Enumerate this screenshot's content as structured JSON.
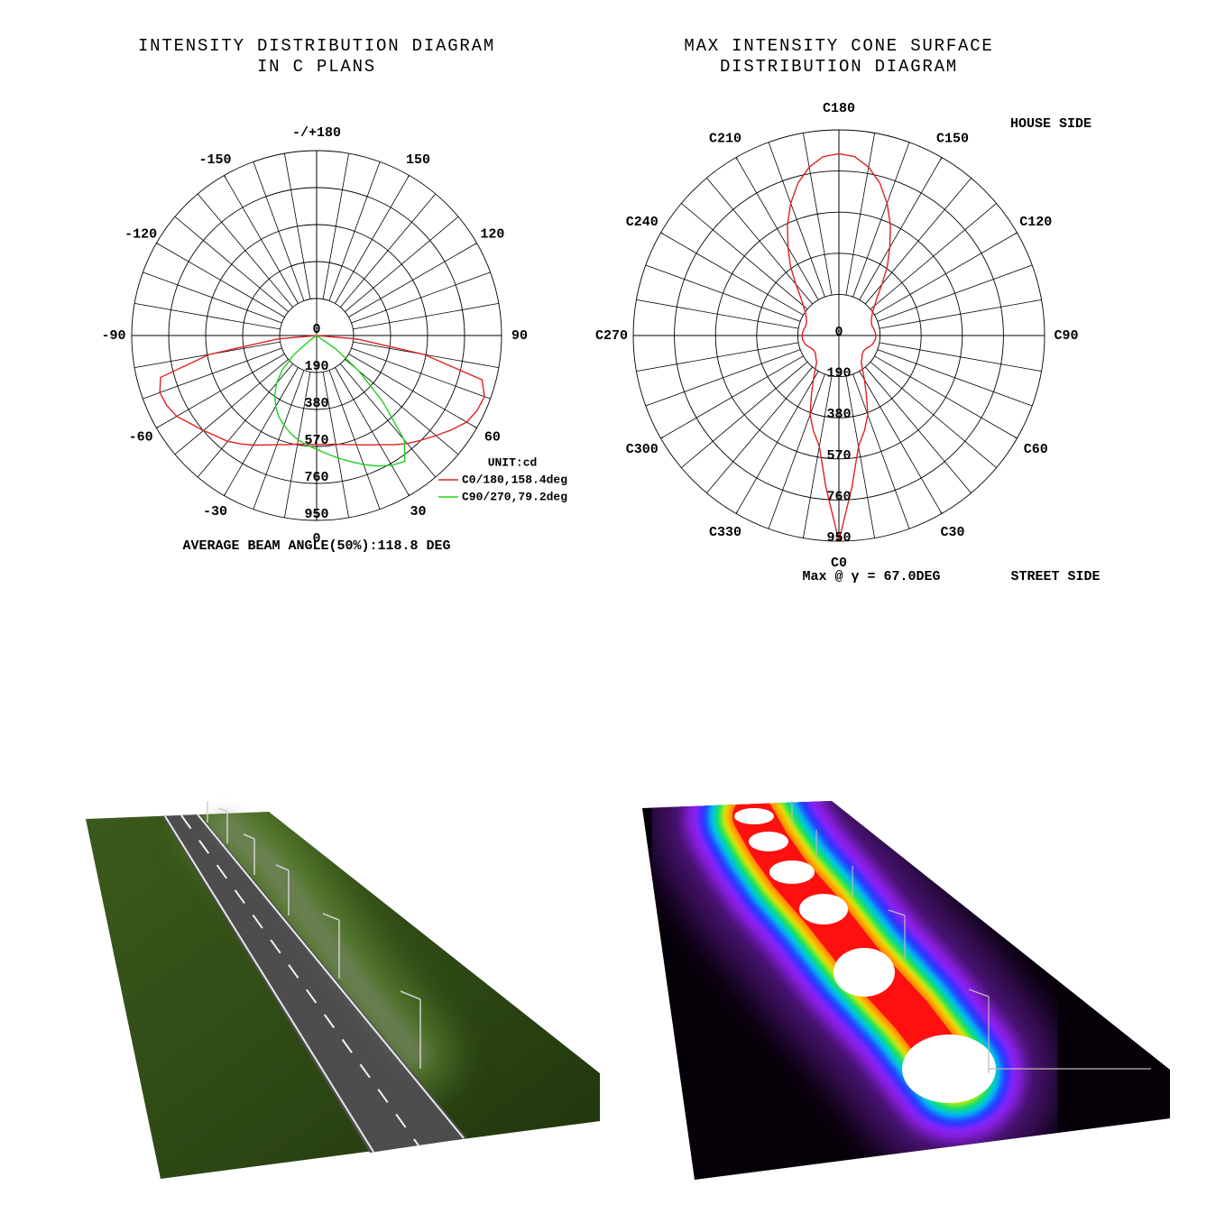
{
  "chart_data": [
    {
      "type": "polar",
      "title": "INTENSITY DISTRIBUTION DIAGRAM",
      "subtitle": "IN C PLANS",
      "x": [
        -90,
        -85,
        -80,
        -75,
        -70,
        -65,
        -60,
        -55,
        -50,
        -45,
        -40,
        -35,
        -30,
        -25,
        -20,
        -15,
        -10,
        -5,
        0,
        5,
        10,
        15,
        20,
        25,
        30,
        35,
        40,
        45,
        50,
        55,
        60,
        65,
        70,
        75,
        80,
        85,
        90
      ],
      "series": [
        {
          "name": "C0/180,158.4deg",
          "color": "#e02020",
          "values": [
            0,
            200,
            560,
            830,
            857,
            850,
            830,
            790,
            760,
            730,
            710,
            680,
            650,
            620,
            597,
            580,
            567,
            562,
            560,
            562,
            567,
            580,
            597,
            620,
            648,
            685,
            725,
            760,
            800,
            845,
            890,
            910,
            918,
            880,
            560,
            210,
            0
          ]
        },
        {
          "name": "C90/270,79.2deg",
          "color": "#20d020",
          "values": [
            0,
            0,
            0,
            0,
            0,
            0,
            0,
            40,
            150,
            250,
            320,
            375,
            420,
            460,
            490,
            520,
            545,
            565,
            585,
            610,
            640,
            670,
            705,
            740,
            770,
            790,
            700,
            480,
            280,
            120,
            0,
            0,
            0,
            0,
            0,
            0,
            0
          ]
        }
      ],
      "rlim": [
        0,
        950
      ],
      "rticks": [
        0,
        190,
        380,
        570,
        760,
        950
      ],
      "angle_ticks": [
        {
          "value": 180,
          "label": "-/+180"
        },
        150,
        120,
        90,
        60,
        30,
        0,
        -30,
        -60,
        -90,
        -120,
        -150
      ],
      "legend": "lower right",
      "unit_label": "UNIT:cd",
      "footer": "AVERAGE BEAM ANGLE(50%):118.8 DEG"
    },
    {
      "type": "polar",
      "title": "MAX INTENSITY CONE SURFACE",
      "subtitle": "DISTRIBUTION DIAGRAM",
      "x": [
        0,
        5,
        10,
        15,
        20,
        25,
        30,
        35,
        40,
        45,
        50,
        55,
        60,
        65,
        70,
        75,
        80,
        85,
        90,
        95,
        100,
        105,
        110,
        115,
        120,
        125,
        130,
        135,
        140,
        145,
        150,
        155,
        160,
        165,
        170,
        175,
        180,
        185,
        190,
        195,
        200,
        205,
        210,
        215,
        220,
        225,
        230,
        235,
        240,
        245,
        250,
        255,
        260,
        265,
        270,
        275,
        280,
        285,
        290,
        295,
        300,
        305,
        310,
        315,
        320,
        325,
        330,
        335,
        340,
        345,
        350,
        355
      ],
      "series": [
        {
          "color": "#e02020",
          "values": [
            950,
            700,
            520,
            455,
            390,
            300,
            236,
            190,
            160,
            150,
            140,
            135,
            135,
            140,
            150,
            160,
            165,
            170,
            170,
            168,
            165,
            160,
            160,
            165,
            175,
            190,
            215,
            250,
            310,
            390,
            470,
            563,
            650,
            730,
            790,
            830,
            840,
            830,
            790,
            730,
            650,
            563,
            470,
            390,
            310,
            250,
            215,
            190,
            175,
            165,
            160,
            160,
            165,
            168,
            170,
            170,
            165,
            160,
            150,
            140,
            135,
            135,
            140,
            150,
            160,
            190,
            236,
            300,
            390,
            455,
            520,
            700
          ]
        }
      ],
      "rlim": [
        0,
        950
      ],
      "rticks": [
        0,
        190,
        380,
        570,
        760,
        950
      ],
      "angle_ticks": [
        {
          "value": 180,
          "label": "C180"
        },
        {
          "value": 150,
          "label": "C150"
        },
        {
          "value": 120,
          "label": "C120"
        },
        {
          "value": 90,
          "label": "C90"
        },
        {
          "value": 60,
          "label": "C60"
        },
        {
          "value": 30,
          "label": "C30"
        },
        {
          "value": 0,
          "label": "C0"
        },
        {
          "value": 330,
          "label": "C330"
        },
        {
          "value": 300,
          "label": "C300"
        },
        {
          "value": 270,
          "label": "C270"
        },
        {
          "value": 240,
          "label": "C240"
        },
        {
          "value": 210,
          "label": "C210"
        }
      ],
      "annotations": [
        "HOUSE SIDE",
        "STREET SIDE",
        "Max @ γ = 67.0DEG"
      ]
    }
  ]
}
